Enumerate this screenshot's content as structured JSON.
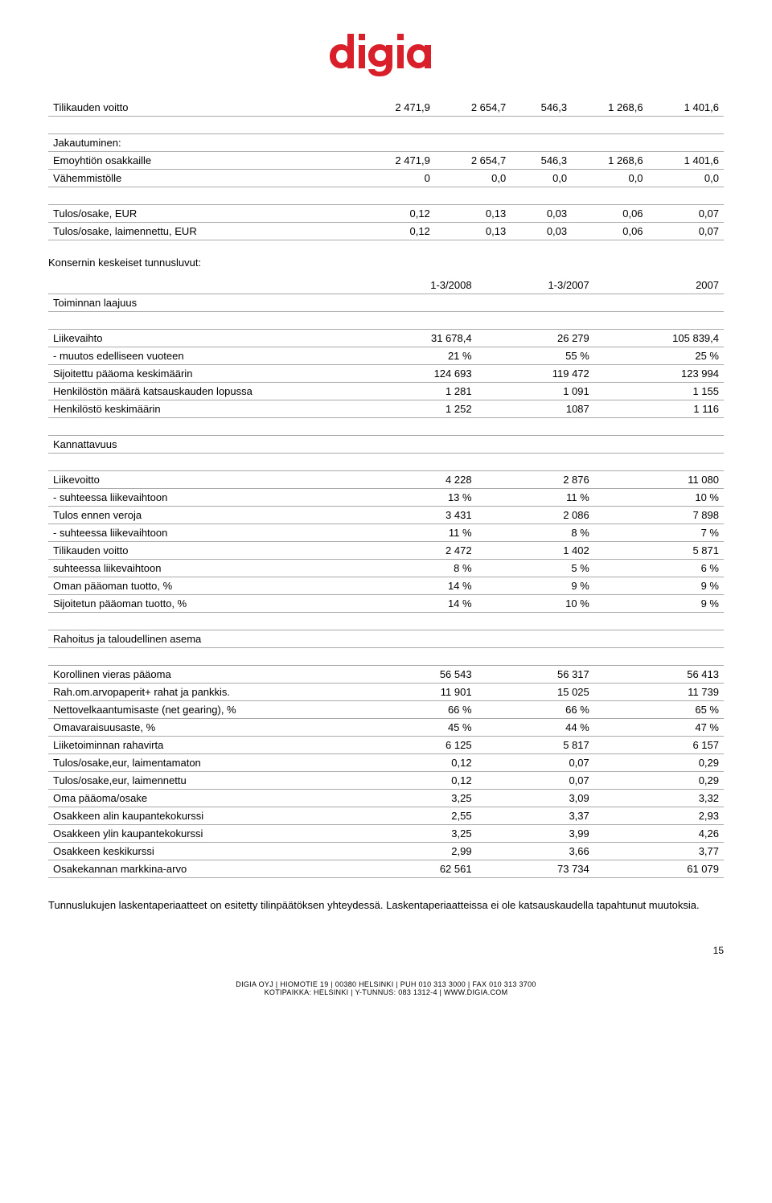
{
  "logo_color": "#d81f2a",
  "section_title": "Konsernin keskeiset tunnusluvut:",
  "table1": {
    "rows": [
      {
        "label": "Tilikauden voitto",
        "c1": "2 471,9",
        "c2": "2 654,7",
        "c3": "546,3",
        "c4": "1 268,6",
        "c5": "1 401,6"
      },
      {
        "label": "",
        "spacer": true
      },
      {
        "label": "Jakautuminen:",
        "c1": "",
        "c2": "",
        "c3": "",
        "c4": "",
        "c5": ""
      },
      {
        "label": "Emoyhtiön osakkaille",
        "c1": "2 471,9",
        "c2": "2 654,7",
        "c3": "546,3",
        "c4": "1 268,6",
        "c5": "1 401,6"
      },
      {
        "label": "Vähemmistölle",
        "c1": "0",
        "c2": "0,0",
        "c3": "0,0",
        "c4": "0,0",
        "c5": "0,0"
      },
      {
        "label": "",
        "spacer": true
      },
      {
        "label": "Tulos/osake, EUR",
        "c1": "0,12",
        "c2": "0,13",
        "c3": "0,03",
        "c4": "0,06",
        "c5": "0,07"
      },
      {
        "label": "Tulos/osake, laimennettu, EUR",
        "c1": "0,12",
        "c2": "0,13",
        "c3": "0,03",
        "c4": "0,06",
        "c5": "0,07"
      }
    ]
  },
  "table2": {
    "header": {
      "c1": "1-3/2008",
      "c2": "1-3/2007",
      "c3": "2007"
    },
    "rows": [
      {
        "label": "Toiminnan laajuus",
        "c1": "",
        "c2": "",
        "c3": ""
      },
      {
        "label": "",
        "spacer": true
      },
      {
        "label": "Liikevaihto",
        "c1": "31 678,4",
        "c2": "26 279",
        "c3": "105 839,4"
      },
      {
        "label": "- muutos edelliseen vuoteen",
        "c1": "21 %",
        "c2": "55 %",
        "c3": "25 %"
      },
      {
        "label": "Sijoitettu pääoma keskimäärin",
        "c1": "124 693",
        "c2": "119 472",
        "c3": "123 994"
      },
      {
        "label": "Henkilöstön määrä katsauskauden lopussa",
        "c1": "1 281",
        "c2": "1 091",
        "c3": "1 155"
      },
      {
        "label": "Henkilöstö keskimäärin",
        "c1": "1 252",
        "c2": "1087",
        "c3": "1 116"
      },
      {
        "label": "",
        "spacer": true
      },
      {
        "label": "Kannattavuus",
        "c1": "",
        "c2": "",
        "c3": ""
      },
      {
        "label": "",
        "spacer": true
      },
      {
        "label": "Liikevoitto",
        "c1": "4 228",
        "c2": "2 876",
        "c3": "11 080"
      },
      {
        "label": "- suhteessa liikevaihtoon",
        "c1": "13 %",
        "c2": "11 %",
        "c3": "10 %"
      },
      {
        "label": "Tulos ennen veroja",
        "c1": "3 431",
        "c2": "2 086",
        "c3": "7 898"
      },
      {
        "label": "- suhteessa liikevaihtoon",
        "c1": "11 %",
        "c2": "8 %",
        "c3": "7 %"
      },
      {
        "label": "Tilikauden voitto",
        "c1": "2 472",
        "c2": "1 402",
        "c3": "5 871"
      },
      {
        "label": "suhteessa liikevaihtoon",
        "c1": "8 %",
        "c2": "5 %",
        "c3": "6 %"
      },
      {
        "label": "Oman pääoman tuotto, %",
        "c1": "14 %",
        "c2": "9 %",
        "c3": "9 %"
      },
      {
        "label": "Sijoitetun pääoman tuotto, %",
        "c1": "14 %",
        "c2": "10 %",
        "c3": "9 %"
      },
      {
        "label": "",
        "spacer": true
      },
      {
        "label": "Rahoitus ja taloudellinen asema",
        "c1": "",
        "c2": "",
        "c3": ""
      },
      {
        "label": "",
        "spacer": true
      },
      {
        "label": "Korollinen vieras pääoma",
        "c1": "56 543",
        "c2": "56 317",
        "c3": "56 413"
      },
      {
        "label": "Rah.om.arvopaperit+ rahat ja pankkis.",
        "c1": "11 901",
        "c2": "15 025",
        "c3": "11 739"
      },
      {
        "label": "Nettovelkaantumisaste (net gearing), %",
        "c1": "66 %",
        "c2": "66 %",
        "c3": "65 %"
      },
      {
        "label": "Omavaraisuusaste, %",
        "c1": "45 %",
        "c2": "44 %",
        "c3": "47 %"
      },
      {
        "label": "Liiketoiminnan rahavirta",
        "c1": "6 125",
        "c2": "5 817",
        "c3": "6 157"
      },
      {
        "label": "Tulos/osake,eur, laimentamaton",
        "c1": "0,12",
        "c2": "0,07",
        "c3": "0,29"
      },
      {
        "label": "Tulos/osake,eur, laimennettu",
        "c1": "0,12",
        "c2": "0,07",
        "c3": "0,29"
      },
      {
        "label": "Oma pääoma/osake",
        "c1": "3,25",
        "c2": "3,09",
        "c3": "3,32"
      },
      {
        "label": "Osakkeen alin kaupantekokurssi",
        "c1": "2,55",
        "c2": "3,37",
        "c3": "2,93"
      },
      {
        "label": "Osakkeen ylin kaupantekokurssi",
        "c1": "3,25",
        "c2": "3,99",
        "c3": "4,26"
      },
      {
        "label": "Osakkeen keskikurssi",
        "c1": "2,99",
        "c2": "3,66",
        "c3": "3,77"
      },
      {
        "label": "Osakekannan markkina-arvo",
        "c1": "62 561",
        "c2": "73 734",
        "c3": "61 079"
      }
    ]
  },
  "body_text": "Tunnuslukujen laskentaperiaatteet on esitetty tilinpäätöksen yhteydessä. Laskentaperiaatteissa ei ole katsauskaudella tapahtunut muutoksia.",
  "page_number": "15",
  "footer_line1": "DIGIA OYJ | HIOMOTIE 19 | 00380 HELSINKI | PUH 010 313 3000 | FAX 010 313 3700",
  "footer_line2": "KOTIPAIKKA: HELSINKI | Y-TUNNUS: 083 1312-4 | WWW.DIGIA.COM"
}
